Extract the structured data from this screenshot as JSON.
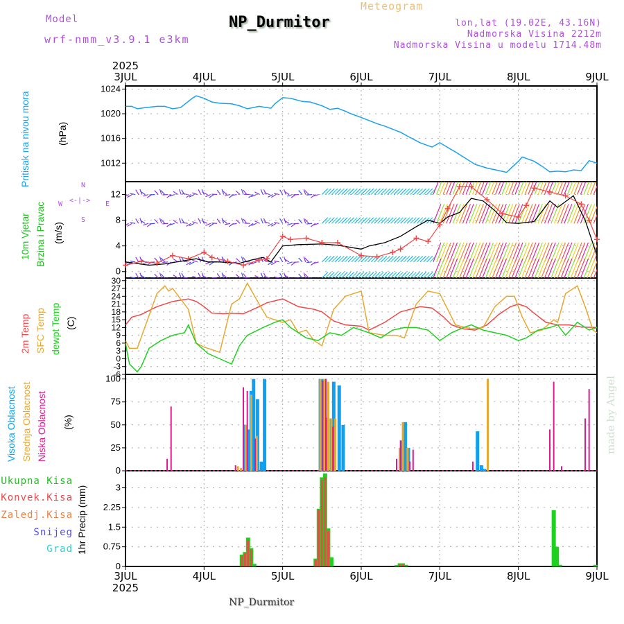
{
  "header": {
    "model_label": "Model",
    "model_name": "wrf-nmm_v3.9.1 e3km",
    "station_title": "NP_Durmitor",
    "chart_kind": "Meteogram",
    "lonlat": "lon,lat (19.02E, 43.16N)",
    "elevation": "Nadmorska Visina 2212m",
    "model_elevation": "Nadmorska Visina u modelu 1714.48m",
    "footer_station": "NP_Durmitor",
    "watermark": "made by Angel"
  },
  "colors": {
    "purple_text": "#b050e0",
    "orange_text": "#f0c070",
    "pressure": "#1aa0ee",
    "temp2m": "#f04848",
    "sfc_temp": "#e8a830",
    "dewpt": "#20d020",
    "high_cloud": "#10a0f0",
    "mid_cloud": "#e8a830",
    "low_cloud": "#e01890",
    "total_rain": "#20d020",
    "conv_rain": "#f04848",
    "frz_rain": "#f08040",
    "snow": "#5050f0",
    "hail": "#30d0d0",
    "wind_speed": "#000000",
    "gust": "#f04848"
  },
  "chart_data": [
    {
      "type": "line",
      "title": "Pritisak na nivou mora",
      "ylabel": "(hPa)",
      "ylim": [
        1009,
        1024.5
      ],
      "yticks": [
        1012,
        1016,
        1020,
        1024
      ],
      "x_start_label": "3JUL",
      "x_year": "2025",
      "x_tick_labels": [
        "3JUL",
        "4JUL",
        "5JUL",
        "6JUL",
        "7JUL",
        "8JUL",
        "9JUL"
      ],
      "xlim_days": [
        0,
        6
      ],
      "series": [
        {
          "name": "Pritisak na nivou mora",
          "x": [
            0,
            0.08,
            0.15,
            0.25,
            0.4,
            0.5,
            0.6,
            0.7,
            0.85,
            0.9,
            1.0,
            1.1,
            1.2,
            1.35,
            1.45,
            1.55,
            1.7,
            1.85,
            1.9,
            2.0,
            2.1,
            2.25,
            2.35,
            2.45,
            2.5,
            2.6,
            2.7,
            2.8,
            2.85,
            3.0,
            3.2,
            3.3,
            3.5,
            3.6,
            3.75,
            3.9,
            4.0,
            4.2,
            4.3,
            4.45,
            4.6,
            4.75,
            4.85,
            5.0,
            5.05,
            5.2,
            5.3,
            5.4,
            5.5,
            5.6,
            5.7,
            5.8,
            5.9,
            6.0
          ],
          "values": [
            1021.2,
            1021.2,
            1020.8,
            1021.0,
            1021.2,
            1021.2,
            1020.8,
            1021.0,
            1022.5,
            1022.9,
            1022.5,
            1021.9,
            1021.7,
            1021.6,
            1021.3,
            1020.8,
            1021.2,
            1020.9,
            1021.6,
            1022.6,
            1022.5,
            1022.0,
            1021.9,
            1021.5,
            1021.3,
            1020.7,
            1020.9,
            1020.4,
            1020.1,
            1019.4,
            1018.4,
            1018.0,
            1017.0,
            1016.3,
            1015.3,
            1014.6,
            1015.3,
            1013.8,
            1013.0,
            1011.8,
            1011.2,
            1010.8,
            1010.5,
            1012.3,
            1013.0,
            1012.3,
            1011.5,
            1010.6,
            1010.7,
            1010.6,
            1010.9,
            1010.8,
            1012.4,
            1012.0
          ]
        }
      ]
    },
    {
      "type": "line",
      "title": "10m Vjetar Brzina i Pravac",
      "ylabel": "(m/s)",
      "ylim": [
        -1,
        14
      ],
      "yticks": [
        0,
        4,
        8,
        12
      ],
      "compass": {
        "north": "N",
        "south": "S",
        "west": "W",
        "east": "E"
      },
      "wind_barb_rows_ms": [
        12,
        7.5,
        1.5,
        -1
      ],
      "wind_dir_color_progression": [
        "purple",
        "blue",
        "cyan",
        "green",
        "yellow",
        "orange",
        "red",
        "magenta"
      ],
      "series": [
        {
          "name": "wind speed",
          "x": [
            0,
            0.3,
            0.5,
            0.7,
            0.9,
            1.05,
            1.2,
            1.45,
            1.6,
            1.75,
            1.85,
            2.0,
            2.2,
            2.5,
            2.7,
            3.0,
            3.1,
            3.3,
            3.5,
            3.7,
            3.85,
            4.0,
            4.1,
            4.25,
            4.4,
            4.55,
            4.7,
            4.85,
            5.0,
            5.2,
            5.4,
            5.5,
            5.7,
            5.85,
            6.0
          ],
          "values": [
            1.5,
            1.0,
            1.2,
            1.6,
            2.0,
            1.5,
            1.5,
            1.3,
            1.8,
            2.2,
            1.5,
            4.0,
            4.2,
            4.3,
            4.1,
            3.5,
            4.0,
            4.5,
            5.5,
            7.0,
            8.0,
            7.5,
            8.5,
            9.2,
            11.4,
            11.0,
            9.5,
            7.6,
            7.5,
            7.8,
            11.0,
            10.0,
            11.8,
            8.0,
            2.5
          ]
        },
        {
          "name": "gust",
          "x": [
            0,
            0.2,
            0.4,
            0.6,
            0.8,
            1.0,
            1.1,
            1.3,
            1.5,
            1.7,
            1.8,
            2.0,
            2.1,
            2.3,
            2.5,
            2.7,
            3.0,
            3.2,
            3.4,
            3.5,
            3.7,
            3.85,
            4.0,
            4.1,
            4.25,
            4.4,
            4.6,
            4.8,
            5.0,
            5.1,
            5.2,
            5.4,
            5.6,
            5.8,
            5.9,
            6.0
          ],
          "values": [
            1.0,
            1.6,
            1.3,
            2.5,
            2.0,
            3.0,
            2.2,
            1.6,
            1.0,
            1.8,
            2.0,
            5.5,
            5.0,
            5.2,
            4.5,
            4.5,
            2.5,
            2.3,
            3.0,
            3.5,
            5.2,
            4.7,
            7.3,
            9.8,
            13.2,
            13.2,
            11.2,
            9.0,
            8.5,
            10.3,
            13.0,
            12.4,
            11.8,
            10.5,
            8.0,
            5.0
          ]
        }
      ]
    },
    {
      "type": "line",
      "title": "2m Temp / SFC Temp / dewpt Temp",
      "ylabel": "(C)",
      "ylim": [
        -6,
        31
      ],
      "yticks": [
        -6,
        -3,
        0,
        3,
        6,
        9,
        12,
        15,
        18,
        21,
        24,
        27,
        30
      ],
      "series": [
        {
          "name": "2m Temp",
          "x": [
            0,
            0.08,
            0.2,
            0.4,
            0.6,
            0.8,
            0.9,
            1.0,
            1.1,
            1.25,
            1.35,
            1.5,
            1.7,
            1.8,
            2.0,
            2.2,
            2.4,
            2.5,
            2.65,
            2.8,
            3.0,
            3.1,
            3.3,
            3.5,
            3.75,
            3.9,
            4.05,
            4.15,
            4.3,
            4.45,
            4.6,
            4.75,
            4.9,
            5.0,
            5.1,
            5.2,
            5.35,
            5.5,
            5.65,
            5.8,
            6.0
          ],
          "values": [
            13,
            16,
            17,
            20,
            22,
            23,
            22,
            20,
            17.5,
            17.3,
            17.5,
            17.3,
            20,
            21.5,
            23,
            20,
            19,
            18,
            14.5,
            13,
            12.5,
            11,
            14,
            18,
            20,
            19.5,
            16,
            13,
            11.5,
            11,
            13,
            17,
            20,
            21,
            20,
            17.5,
            14,
            13,
            13,
            12.2,
            12
          ]
        },
        {
          "name": "SFC Temp",
          "x": [
            0,
            0.05,
            0.15,
            0.4,
            0.5,
            0.55,
            0.6,
            0.7,
            0.8,
            0.9,
            1.0,
            1.2,
            1.35,
            1.45,
            1.55,
            1.7,
            1.8,
            2.0,
            2.1,
            2.2,
            2.3,
            2.4,
            2.5,
            2.65,
            2.8,
            3.0,
            3.1,
            3.3,
            3.45,
            3.55,
            3.7,
            3.85,
            4.0,
            4.2,
            4.4,
            4.55,
            4.7,
            4.85,
            4.95,
            5.05,
            5.15,
            5.3,
            5.45,
            5.5,
            5.6,
            5.75,
            5.85,
            5.95,
            6.0
          ],
          "values": [
            7,
            4,
            4,
            25,
            28,
            26,
            27,
            23,
            19,
            6,
            4.5,
            2.5,
            21,
            23,
            29,
            21,
            16,
            14,
            15,
            10,
            11,
            7,
            5,
            19,
            24,
            26,
            10,
            9,
            9,
            8,
            21,
            26,
            25,
            13,
            11.5,
            12,
            20,
            24,
            24,
            16,
            10,
            11,
            15,
            14,
            25,
            28,
            20,
            11,
            10
          ]
        },
        {
          "name": "dewpt Temp",
          "x": [
            0,
            0.05,
            0.15,
            0.2,
            0.3,
            0.45,
            0.6,
            0.75,
            0.8,
            0.9,
            1.05,
            1.2,
            1.35,
            1.45,
            1.55,
            1.75,
            1.9,
            2.0,
            2.1,
            2.2,
            2.3,
            2.45,
            2.6,
            2.75,
            2.9,
            3.0,
            3.1,
            3.25,
            3.4,
            3.55,
            3.7,
            3.85,
            4.0,
            4.15,
            4.3,
            4.4,
            4.55,
            4.7,
            4.85,
            5.0,
            5.1,
            5.25,
            5.4,
            5.5,
            5.6,
            5.75,
            5.9,
            6.0
          ],
          "values": [
            6,
            -2,
            -5,
            -3,
            4,
            7,
            9,
            10,
            13,
            6,
            2,
            0,
            -2,
            5,
            9,
            12,
            14,
            15,
            12,
            10,
            8,
            7,
            10,
            9,
            12,
            11,
            10,
            8,
            11,
            12,
            12,
            11,
            7,
            10,
            12,
            13,
            11,
            10,
            9,
            7,
            8,
            11,
            12,
            13,
            9,
            14,
            11,
            12
          ]
        }
      ]
    },
    {
      "type": "bar",
      "title": "Visoka / Srednja / Niska Oblacnost",
      "ylabel": "(%)",
      "ylim": [
        0,
        105
      ],
      "yticks": [
        0,
        25,
        50,
        75,
        100
      ],
      "series": [
        {
          "name": "Visoka Oblacnost",
          "x": [
            1.53,
            1.58,
            1.6,
            1.63,
            1.68,
            1.73,
            1.77,
            2.48,
            2.52,
            2.57,
            2.62,
            2.65,
            2.72,
            2.77,
            2.85,
            3.52,
            3.56,
            3.6,
            4.48,
            4.53,
            4.57
          ],
          "values": [
            50,
            45,
            87,
            100,
            78,
            10,
            100,
            100,
            100,
            58,
            57,
            97,
            93,
            50,
            0,
            33,
            53,
            25,
            43,
            6,
            2
          ]
        },
        {
          "name": "Srednja Oblacnost",
          "x": [
            1.43,
            1.47,
            1.53,
            1.6,
            1.67,
            2.48,
            2.53,
            2.58,
            2.62,
            2.67,
            3.49,
            3.53,
            3.59,
            4.61
          ],
          "values": [
            5,
            3,
            50,
            83,
            38,
            100,
            100,
            97,
            57,
            57,
            25,
            53,
            25,
            100
          ]
        },
        {
          "name": "Niska Oblacnost",
          "x": [
            0.53,
            0.58,
            1.4,
            1.5,
            1.55,
            1.65,
            2.51,
            2.55,
            2.64,
            3.45,
            3.5,
            3.62,
            3.66,
            4.42,
            5.4,
            5.45,
            5.55,
            5.85,
            5.9
          ],
          "values": [
            13,
            70,
            6,
            91,
            87,
            35,
            98,
            100,
            48,
            13,
            33,
            10,
            23,
            10,
            45,
            97,
            5,
            57,
            89
          ]
        }
      ]
    },
    {
      "type": "bar",
      "title": "1hr Precip",
      "ylabel": "1hr Precip (mm)",
      "ylim": [
        0,
        3.65
      ],
      "yticks": [
        0,
        0.75,
        1.5,
        2.25,
        3
      ],
      "legend": [
        "Ukupna Kisa",
        "Konvek.Kisa",
        "Zaledj.Kisa",
        "Snijeg",
        "Grad"
      ],
      "legend_placement": "left",
      "series": [
        {
          "name": "Ukupna Kisa",
          "x": [
            1.48,
            1.52,
            1.56,
            1.6,
            1.64,
            2.42,
            2.46,
            2.5,
            2.54,
            2.58,
            2.62,
            3.45,
            3.49,
            3.53,
            3.57,
            5.45,
            5.49,
            5.53,
            5.98
          ],
          "values": [
            0.45,
            0.55,
            1.1,
            0.7,
            0.1,
            0.3,
            2.2,
            3.4,
            3.55,
            1.45,
            0.35,
            0.05,
            0.12,
            0.12,
            0.06,
            2.15,
            0.75,
            0.06,
            0.06
          ]
        },
        {
          "name": "Konvek.Kisa",
          "x": [
            1.48,
            1.52,
            1.56,
            1.6,
            2.42,
            2.46,
            2.5,
            2.54,
            2.58,
            3.49,
            3.53
          ],
          "values": [
            0.4,
            0.5,
            1.0,
            0.65,
            0.25,
            2.15,
            3.3,
            3.4,
            1.35,
            0.1,
            0.1
          ]
        }
      ]
    }
  ]
}
